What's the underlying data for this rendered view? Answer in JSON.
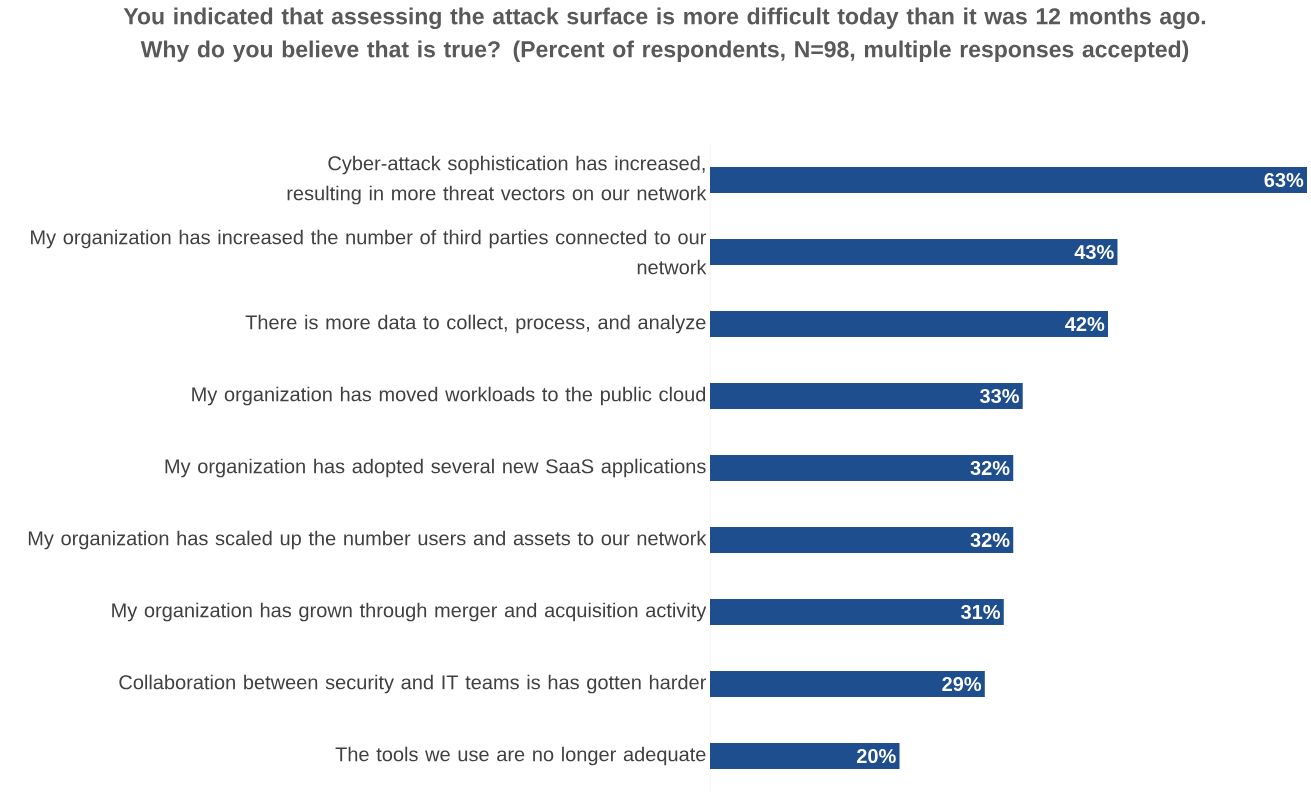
{
  "chart_data": {
    "type": "bar",
    "orientation": "horizontal",
    "title": "You indicated that assessing the attack surface is more difficult today than it was 12 months ago. Why do you believe that is true? (Percent of respondents, N=98, multiple responses accepted)",
    "categories": [
      "Cyber-attack sophistication has increased, resulting in more threat vectors on our network",
      "My organization has increased the number of third parties connected to our network",
      "There is more data to collect, process, and analyze",
      "My organization has moved workloads to the public cloud",
      "My organization has adopted several new SaaS applications",
      "My organization has scaled up the number users and assets to our network",
      "My organization has grown through merger and acquisition activity",
      "Collaboration between security and IT teams is has gotten harder",
      "The tools we use are no longer adequate"
    ],
    "values": [
      63,
      43,
      42,
      33,
      32,
      32,
      31,
      29,
      20
    ],
    "value_labels": [
      "63%",
      "43%",
      "42%",
      "33%",
      "32%",
      "32%",
      "31%",
      "29%",
      "20%"
    ],
    "color": "#1f4e8f"
  }
}
